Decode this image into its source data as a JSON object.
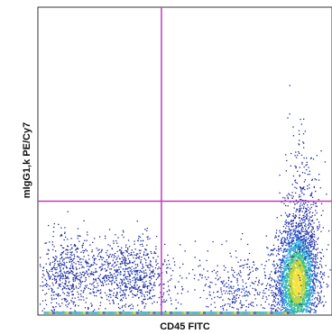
{
  "chart_data": {
    "type": "scatter",
    "style": "flow-cytometry density dot plot",
    "xlabel": "CD45 FITC",
    "ylabel": "mIgG1,k PE/Cy7",
    "xlim": [
      0,
      1
    ],
    "ylim": [
      0,
      1
    ],
    "tick_labels_shown": false,
    "grid": false,
    "quadrant_gates": {
      "x": 0.42,
      "y": 0.37,
      "color": "#c23bbf"
    },
    "density_colors": [
      "#1e2a9c",
      "#2b54c8",
      "#2aa6d6",
      "#3cc08a",
      "#b9d33a",
      "#f2e23a"
    ],
    "populations": [
      {
        "name": "",
        "center": [
          0.88,
          0.11
        ],
        "spread": [
          0.035,
          0.09
        ],
        "count": 3500,
        "dense": true
      },
      {
        "name": "",
        "center": [
          0.9,
          0.34
        ],
        "spread": [
          0.03,
          0.12
        ],
        "count": 350,
        "dense": false
      },
      {
        "name": "",
        "center": [
          0.3,
          0.13
        ],
        "spread": [
          0.09,
          0.06
        ],
        "count": 900,
        "dense": false
      },
      {
        "name": "",
        "center": [
          0.09,
          0.13
        ],
        "spread": [
          0.05,
          0.07
        ],
        "count": 500,
        "dense": false
      },
      {
        "name": "",
        "center": [
          0.68,
          0.09
        ],
        "spread": [
          0.07,
          0.06
        ],
        "count": 350,
        "dense": false
      }
    ],
    "axis_floor_band": true
  }
}
